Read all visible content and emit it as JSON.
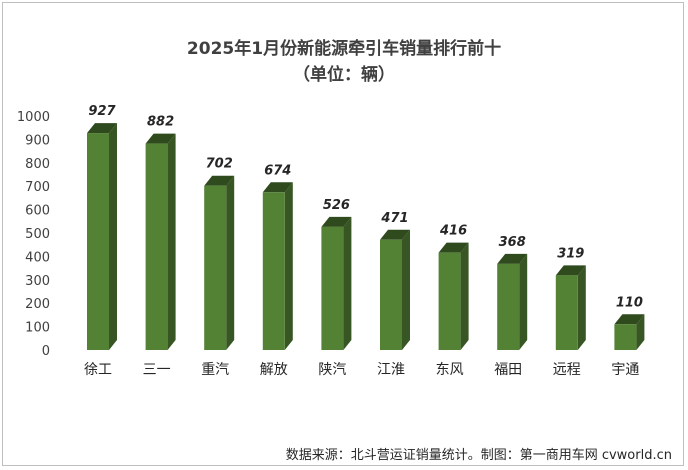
{
  "chart_data": {
    "type": "bar",
    "title": "2025年1月份新能源牵引车销量排行前十",
    "subtitle": "（单位：辆）",
    "categories": [
      "徐工",
      "三一",
      "重汽",
      "解放",
      "陕汽",
      "江淮",
      "东风",
      "福田",
      "远程",
      "宇通"
    ],
    "values": [
      927,
      882,
      702,
      674,
      526,
      471,
      416,
      368,
      319,
      110
    ],
    "ylim": [
      0,
      1000
    ],
    "yticks": [
      0,
      100,
      200,
      300,
      400,
      500,
      600,
      700,
      800,
      900,
      1000
    ],
    "grid": false,
    "bar_color": "#548235",
    "source": "数据来源：北斗营运证销量统计。制图：第一商用车网 cvworld.cn"
  }
}
